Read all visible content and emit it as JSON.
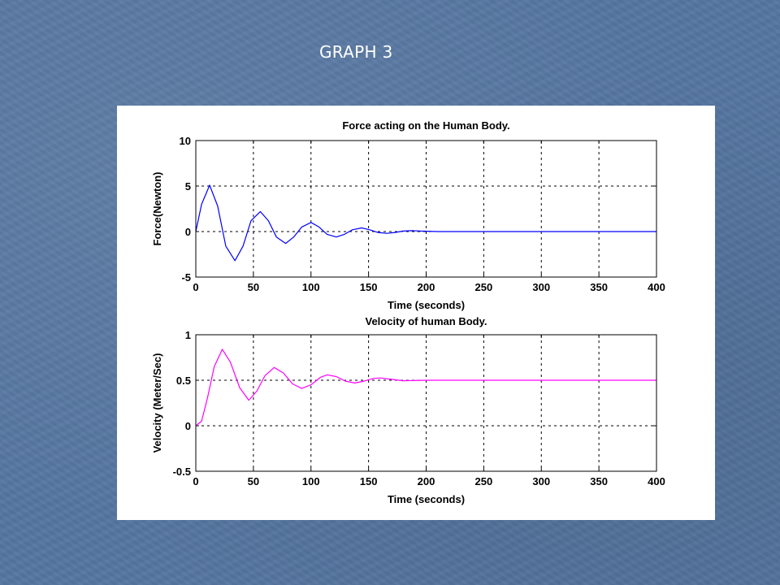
{
  "slide": {
    "title": "GRAPH 3"
  },
  "colors": {
    "background": "#5676a1",
    "force_line": "#0000ff",
    "velocity_line": "#ff00ff"
  },
  "chart_data": [
    {
      "type": "line",
      "title": "Force acting on the Human Body.",
      "xlabel": "Time (seconds)",
      "ylabel": "Force(Newton)",
      "xlim": [
        0,
        400
      ],
      "ylim": [
        -5,
        10
      ],
      "xticks": [
        0,
        50,
        100,
        150,
        200,
        250,
        300,
        350,
        400
      ],
      "yticks": [
        -5,
        0,
        5,
        10
      ],
      "grid": true,
      "series": [
        {
          "color": "#0000ff",
          "x": [
            0,
            5,
            12,
            19,
            26,
            34,
            41,
            48,
            56,
            63,
            70,
            78,
            85,
            92,
            100,
            107,
            114,
            122,
            129,
            136,
            144,
            151,
            158,
            166,
            173,
            180,
            188,
            195,
            210,
            240,
            280,
            320,
            360,
            400
          ],
          "y": [
            0,
            3.0,
            5.1,
            2.8,
            -1.6,
            -3.2,
            -1.6,
            1.2,
            2.2,
            1.2,
            -0.6,
            -1.3,
            -0.6,
            0.5,
            1.0,
            0.5,
            -0.3,
            -0.6,
            -0.3,
            0.2,
            0.4,
            0.2,
            -0.1,
            -0.2,
            -0.1,
            0.05,
            0.1,
            0.05,
            0,
            0,
            0,
            0,
            0,
            0
          ]
        }
      ]
    },
    {
      "type": "line",
      "title": "Velocity of human Body.",
      "xlabel": "Time (seconds)",
      "ylabel": "Velocity (Meter/Sec)",
      "xlim": [
        0,
        400
      ],
      "ylim": [
        -0.5,
        1
      ],
      "xticks": [
        0,
        50,
        100,
        150,
        200,
        250,
        300,
        350,
        400
      ],
      "yticks": [
        -0.5,
        0,
        0.5,
        1
      ],
      "grid": true,
      "series": [
        {
          "color": "#ff00ff",
          "x": [
            0,
            5,
            10,
            16,
            23,
            30,
            38,
            46,
            53,
            60,
            68,
            76,
            84,
            92,
            100,
            108,
            114,
            122,
            130,
            138,
            146,
            154,
            160,
            170,
            180,
            200,
            230,
            260,
            300,
            340,
            400
          ],
          "y": [
            0,
            0.05,
            0.3,
            0.65,
            0.84,
            0.7,
            0.42,
            0.28,
            0.38,
            0.55,
            0.64,
            0.58,
            0.46,
            0.41,
            0.45,
            0.53,
            0.56,
            0.54,
            0.49,
            0.47,
            0.49,
            0.52,
            0.525,
            0.51,
            0.495,
            0.5,
            0.5,
            0.5,
            0.5,
            0.5,
            0.5
          ]
        }
      ]
    }
  ]
}
